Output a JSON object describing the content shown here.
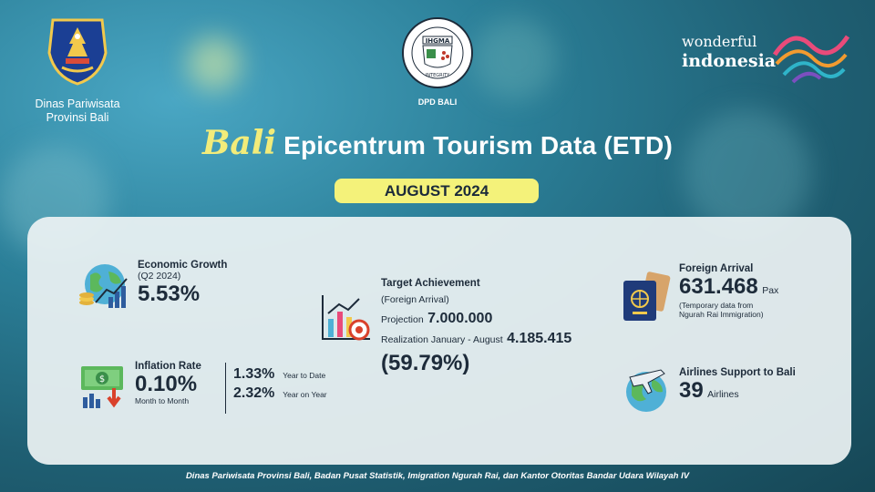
{
  "header": {
    "left_logo_text": [
      "Dinas Pariwisata",
      "Provinsi Bali"
    ],
    "center_logo_label": "DPD BALI",
    "center_logo_seal_text": "IHGMA",
    "center_logo_motto": "INTEGRITY",
    "right_logo_word1": "wonderful",
    "right_logo_word2": "indonesia"
  },
  "title": {
    "script_word": "Bali",
    "main": "Epicentrum Tourism Data (ETD)",
    "period": "AUGUST 2024"
  },
  "economic_growth": {
    "label": "Economic Growth",
    "period": "(Q2 2024)",
    "value": "5.53%"
  },
  "inflation": {
    "label": "Inflation Rate",
    "mtm_value": "0.10%",
    "mtm_label": "Month to Month",
    "ytd_value": "1.33%",
    "ytd_label": "Year to Date",
    "yoy_value": "2.32%",
    "yoy_label": "Year on Year"
  },
  "target": {
    "label": "Target Achievement",
    "sublabel": "(Foreign Arrival)",
    "projection_label": "Projection",
    "projection_value": "7.000.000",
    "realization_label": "Realization January - August",
    "realization_value": "4.185.415",
    "percent": "(59.79%)"
  },
  "foreign_arrival": {
    "label": "Foreign Arrival",
    "value": "631.468",
    "unit": "Pax",
    "note1": "(Temporary data from",
    "note2": "Ngurah Rai Immigration)"
  },
  "airlines": {
    "label": "Airlines Support to Bali",
    "value": "39",
    "unit": "Airlines"
  },
  "footer": "Dinas Pariwisata Provinsi Bali, Badan Pusat Statistik, Imigration Ngurah Rai, dan Kantor Otoritas Bandar Udara Wilayah IV",
  "colors": {
    "title_yellow": "#f4f27a",
    "navy": "#1d2b3a",
    "panel": "#ecf2f3"
  },
  "icons": [
    "globe-growth-icon",
    "money-down-icon",
    "chart-target-icon",
    "passport-icon",
    "airline-globe-icon"
  ]
}
